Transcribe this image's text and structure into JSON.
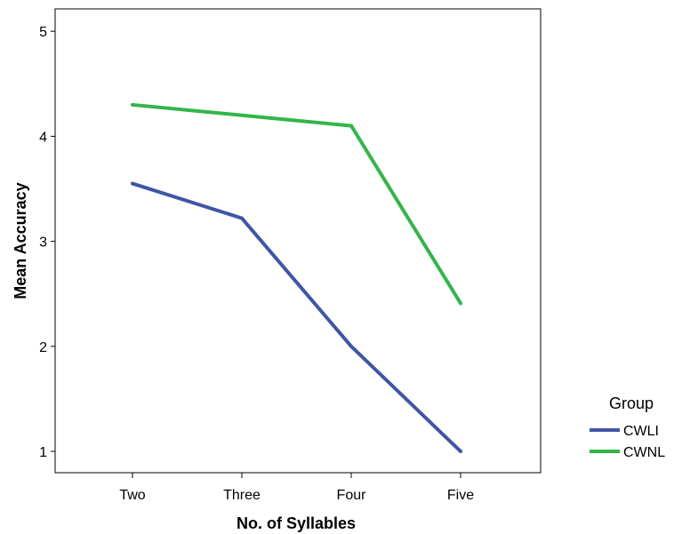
{
  "chart_data": {
    "type": "line",
    "title": "",
    "xlabel": "No. of Syllables",
    "ylabel": "Mean Accuracy",
    "categories": [
      "Two",
      "Three",
      "Four",
      "Five"
    ],
    "yticks": [
      1,
      2,
      3,
      4,
      5
    ],
    "ylim": [
      0.75,
      5.25
    ],
    "grid": false,
    "legend": {
      "title": "Group",
      "position": "right"
    },
    "series": [
      {
        "name": "CWLI",
        "color": "#3f56a6",
        "values": [
          3.55,
          3.22,
          2.0,
          1.0
        ]
      },
      {
        "name": "CWNL",
        "color": "#33b54a",
        "values": [
          4.3,
          4.2,
          4.1,
          2.41
        ]
      }
    ]
  }
}
